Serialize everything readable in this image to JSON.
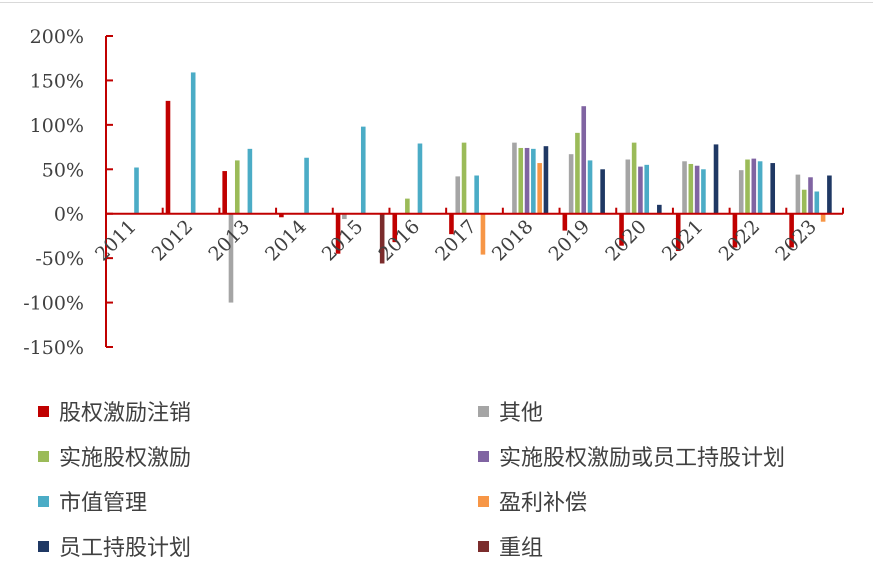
{
  "chart_data": {
    "type": "bar",
    "categories": [
      "2011",
      "2012",
      "2013",
      "2014",
      "2015",
      "2016",
      "2017",
      "2018",
      "2019",
      "2020",
      "2021",
      "2022",
      "2023"
    ],
    "y_ticks": [
      "200%",
      "150%",
      "100%",
      "50%",
      "0%",
      "-50%",
      "-100%",
      "-150%"
    ],
    "ylim": [
      -150,
      200
    ],
    "unit": "%",
    "grid": false,
    "legend_position": "bottom",
    "series": [
      {
        "name": "股权激励注销",
        "color": "#c00000",
        "values": [
          0,
          127,
          48,
          -4,
          -45,
          -32,
          -23,
          0,
          -19,
          -36,
          -42,
          -38,
          -38
        ]
      },
      {
        "name": "其他",
        "color": "#a5a5a5",
        "values": [
          0,
          0,
          -100,
          0,
          -6,
          0,
          42,
          80,
          67,
          61,
          59,
          49,
          44
        ]
      },
      {
        "name": "实施股权激励",
        "color": "#9bbb59",
        "values": [
          0,
          0,
          60,
          0,
          0,
          17,
          80,
          74,
          91,
          80,
          56,
          61,
          27
        ]
      },
      {
        "name": "实施股权激励或员工持股计划",
        "color": "#8064a2",
        "values": [
          0,
          0,
          0,
          0,
          0,
          0,
          0,
          74,
          121,
          53,
          54,
          62,
          41
        ]
      },
      {
        "name": "市值管理",
        "color": "#4bacc6",
        "values": [
          52,
          159,
          73,
          63,
          98,
          79,
          43,
          73,
          60,
          55,
          50,
          59,
          25
        ]
      },
      {
        "name": "盈利补偿",
        "color": "#f79646",
        "values": [
          0,
          0,
          0,
          0,
          0,
          0,
          -46,
          57,
          0,
          0,
          0,
          0,
          -9
        ]
      },
      {
        "name": "员工持股计划",
        "color": "#1f3864",
        "values": [
          0,
          0,
          0,
          0,
          0,
          0,
          0,
          76,
          50,
          10,
          78,
          57,
          43
        ]
      },
      {
        "name": "重组",
        "color": "#7b2c2c",
        "values": [
          0,
          0,
          0,
          0,
          -56,
          0,
          0,
          0,
          0,
          0,
          0,
          0,
          0
        ]
      }
    ]
  },
  "axis_color": "#c00000"
}
